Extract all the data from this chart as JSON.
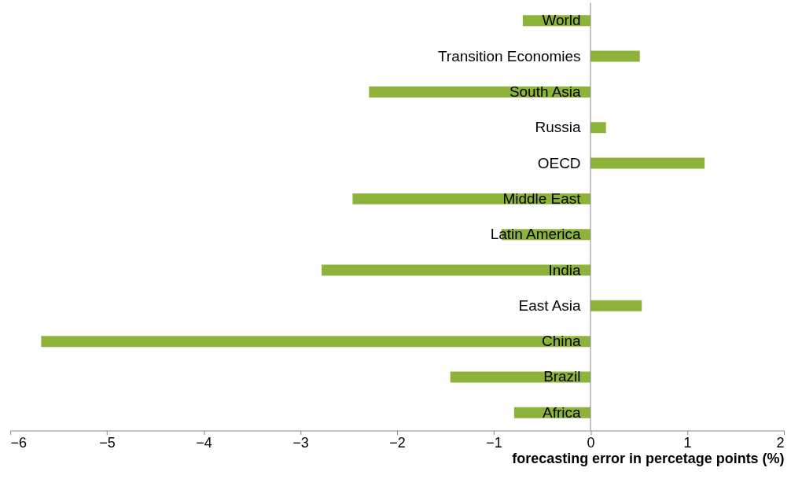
{
  "chart_data": {
    "type": "bar",
    "orientation": "horizontal",
    "xlabel": "forecasting error in percetage points (%)",
    "categories": [
      "World",
      "Transition Economies",
      "South Asia",
      "Russia",
      "OECD",
      "Middle East",
      "Latin America",
      "India",
      "East Asia",
      "China",
      "Brazil",
      "Africa"
    ],
    "values": [
      -0.7,
      0.51,
      -2.29,
      0.16,
      1.18,
      -2.46,
      -0.92,
      -2.78,
      0.53,
      -5.68,
      -1.45,
      -0.79
    ],
    "color": "#8db33a",
    "xlim": [
      -6,
      2
    ],
    "xticks": [
      -6,
      -5,
      -4,
      -3,
      -2,
      -1,
      0,
      1,
      2
    ],
    "grid": false
  }
}
